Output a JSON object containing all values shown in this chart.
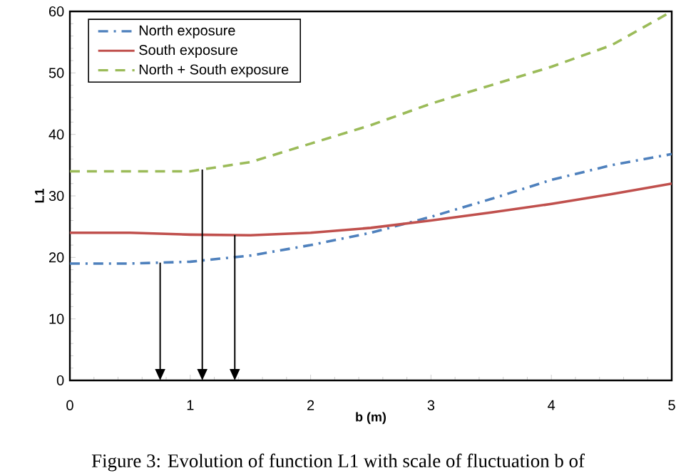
{
  "chart_data": {
    "type": "line",
    "xlabel": "b (m)",
    "ylabel": "L1",
    "x": [
      0,
      0.5,
      1,
      1.5,
      2,
      2.5,
      3,
      3.5,
      4,
      4.5,
      5
    ],
    "series": [
      {
        "name": "North exposure",
        "color": "#4f81bd",
        "line_style": "dashdot",
        "values": [
          19,
          19,
          19.3,
          20.3,
          22,
          24,
          26.6,
          29.5,
          32.6,
          35,
          36.8
        ]
      },
      {
        "name": "South exposure",
        "color": "#c0504d",
        "line_style": "solid",
        "values": [
          24,
          24,
          23.7,
          23.6,
          24,
          24.8,
          26,
          27.3,
          28.7,
          30.3,
          32
        ]
      },
      {
        "name": "North + South exposure",
        "color": "#9bbb59",
        "line_style": "dashed",
        "values": [
          34,
          34,
          34,
          35.5,
          38.5,
          41.5,
          45,
          48,
          51,
          54.5,
          60
        ]
      }
    ],
    "xlim": [
      0,
      5
    ],
    "ylim": [
      0,
      60
    ],
    "xticks": [
      0,
      1,
      2,
      3,
      4,
      5
    ],
    "yticks": [
      0,
      10,
      20,
      30,
      40,
      50,
      60
    ],
    "ref_lines": [
      {
        "axis": "x",
        "value": 0.75
      },
      {
        "axis": "x",
        "value": 1.37
      },
      {
        "axis": "x",
        "value": 1.1
      }
    ],
    "legend": "top left",
    "grid": false,
    "marker": "none",
    "annotations": [
      "Figure 3: Evolution of function L1 with scale of fluctuation b of"
    ]
  }
}
